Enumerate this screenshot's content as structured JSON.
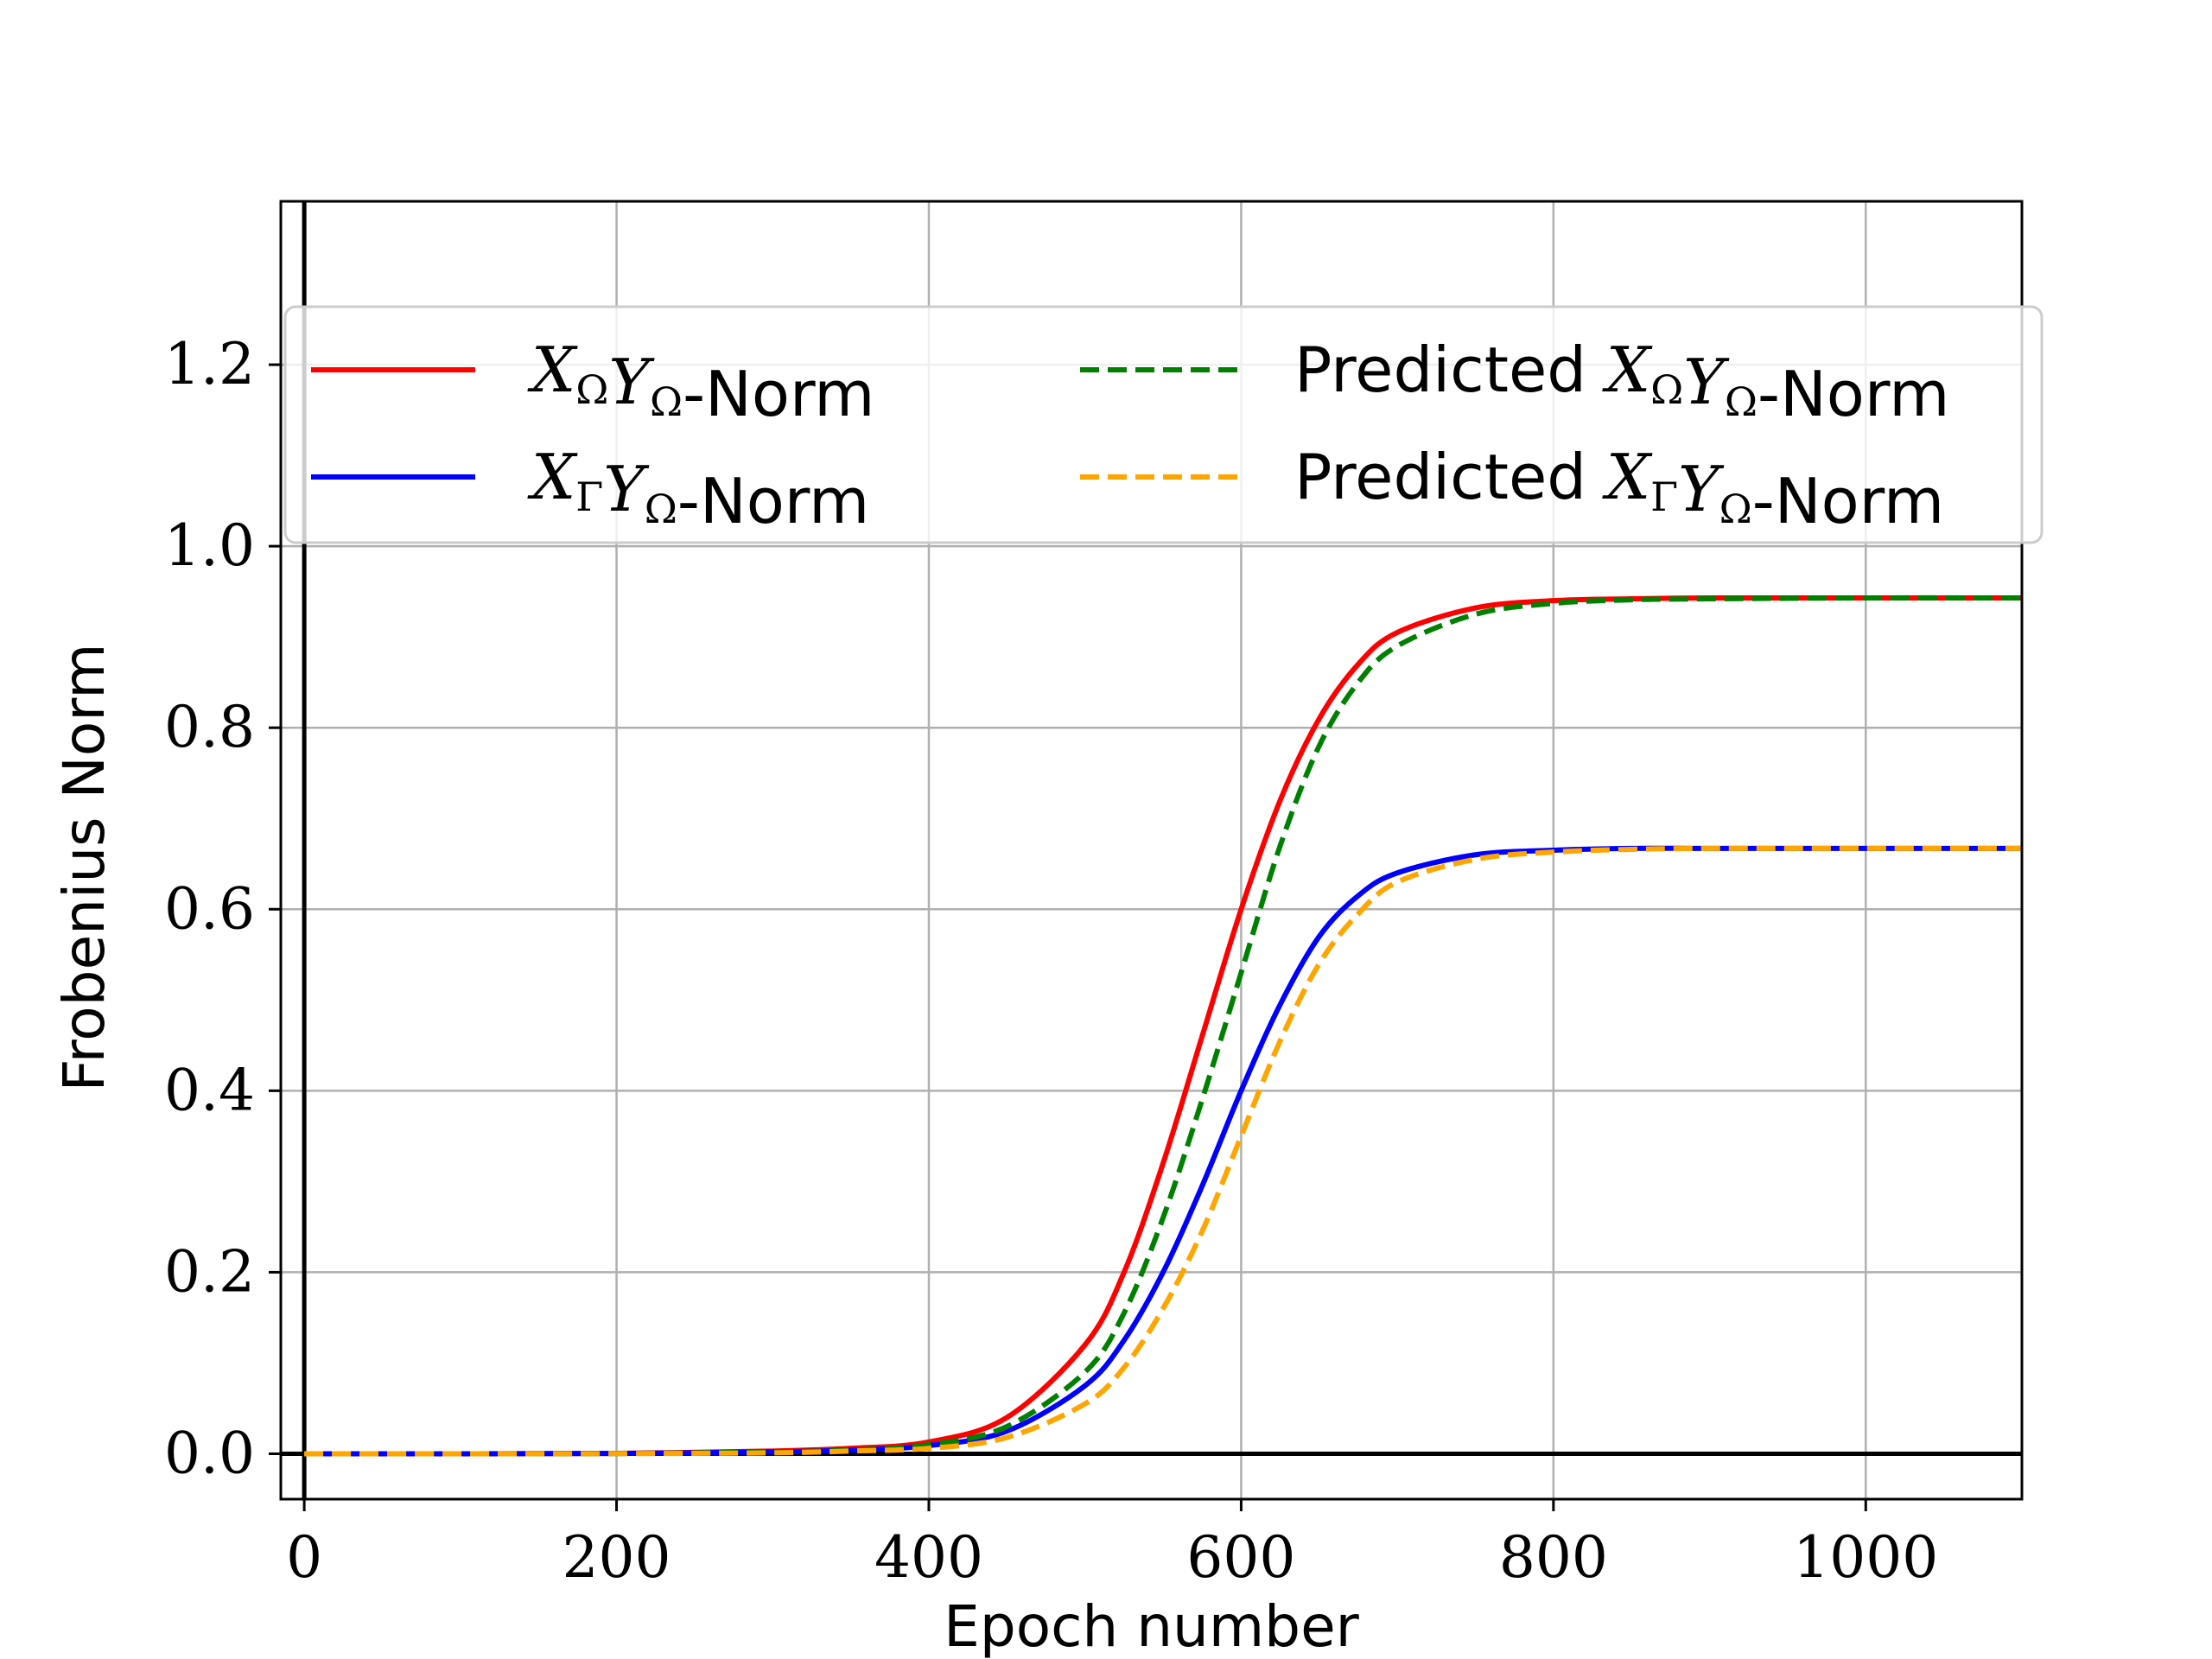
{
  "chart_data": {
    "type": "line",
    "xlabel": "Epoch number",
    "ylabel": "Frobenius Norm",
    "xlim": [
      -15,
      1100
    ],
    "ylim": [
      -0.05,
      1.38
    ],
    "xticks": [
      0,
      200,
      400,
      600,
      800,
      1000
    ],
    "xtick_labels": [
      "0",
      "200",
      "400",
      "600",
      "800",
      "1000"
    ],
    "yticks": [
      0.0,
      0.2,
      0.4,
      0.6,
      0.8,
      1.0,
      1.2
    ],
    "ytick_labels": [
      "0.0",
      "0.2",
      "0.4",
      "0.6",
      "0.8",
      "1.0",
      "1.2"
    ],
    "grid": true,
    "legend_position": "upper center, 2 columns",
    "x": [
      0,
      100,
      200,
      300,
      350,
      400,
      450,
      500,
      525,
      550,
      575,
      600,
      625,
      650,
      675,
      700,
      750,
      800,
      850,
      900,
      1000,
      1100
    ],
    "series": [
      {
        "name_parts": [
          {
            "t": "X",
            "math": true
          },
          {
            "t": "Ω",
            "sub": true
          },
          {
            "t": "Y",
            "math": true
          },
          {
            "t": "Ω",
            "sub": true
          },
          {
            "t": "-Norm"
          }
        ],
        "color": "#ff0000",
        "style": "solid",
        "values": [
          0.0,
          0.0,
          0.0005,
          0.003,
          0.006,
          0.013,
          0.04,
          0.12,
          0.2,
          0.32,
          0.46,
          0.6,
          0.72,
          0.81,
          0.87,
          0.905,
          0.932,
          0.94,
          0.942,
          0.943,
          0.943,
          0.943
        ]
      },
      {
        "name_parts": [
          {
            "t": "X",
            "math": true
          },
          {
            "t": "Γ",
            "sub": true
          },
          {
            "t": "Y",
            "math": true
          },
          {
            "t": "Ω",
            "sub": true
          },
          {
            "t": "-Norm"
          }
        ],
        "color": "#0000ff",
        "style": "solid",
        "values": [
          0.0,
          0.0,
          0.0003,
          0.002,
          0.004,
          0.009,
          0.025,
          0.075,
          0.125,
          0.2,
          0.295,
          0.4,
          0.495,
          0.57,
          0.615,
          0.64,
          0.66,
          0.665,
          0.667,
          0.667,
          0.667,
          0.667
        ]
      },
      {
        "name_parts": [
          {
            "t": "Predicted "
          },
          {
            "t": "X",
            "math": true
          },
          {
            "t": "Ω",
            "sub": true
          },
          {
            "t": "Y",
            "math": true
          },
          {
            "t": "Ω",
            "sub": true
          },
          {
            "t": "-Norm"
          }
        ],
        "color": "#008000",
        "style": "dashed",
        "values": [
          0.0,
          0.0,
          0.0003,
          0.002,
          0.004,
          0.01,
          0.03,
          0.09,
          0.155,
          0.26,
          0.39,
          0.53,
          0.67,
          0.78,
          0.85,
          0.89,
          0.925,
          0.937,
          0.941,
          0.942,
          0.943,
          0.943
        ]
      },
      {
        "name_parts": [
          {
            "t": "Predicted "
          },
          {
            "t": "X",
            "math": true
          },
          {
            "t": "Γ",
            "sub": true
          },
          {
            "t": "Y",
            "math": true
          },
          {
            "t": "Ω",
            "sub": true
          },
          {
            "t": "-Norm"
          }
        ],
        "color": "#ffa500",
        "style": "dashed",
        "values": [
          0.0,
          0.0,
          0.0002,
          0.001,
          0.003,
          0.006,
          0.018,
          0.055,
          0.095,
          0.16,
          0.245,
          0.35,
          0.455,
          0.54,
          0.595,
          0.63,
          0.655,
          0.663,
          0.666,
          0.667,
          0.667,
          0.667
        ]
      }
    ]
  }
}
